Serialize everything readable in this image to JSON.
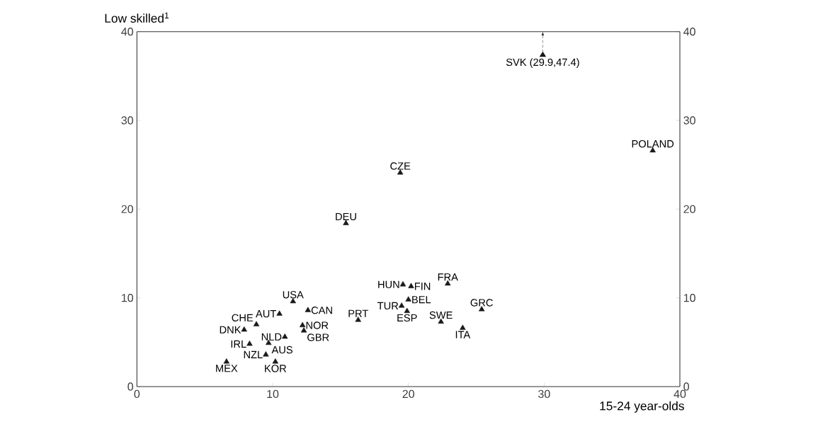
{
  "chart_data": {
    "type": "scatter",
    "ylabel": "Low skilled$^{1}$",
    "xlabel": "15-24 year-olds",
    "xlim": [
      0,
      40
    ],
    "ylim": [
      0,
      40
    ],
    "xticks": [
      0,
      10,
      20,
      30,
      40
    ],
    "yticks": [
      0,
      10,
      20,
      30,
      40
    ],
    "y2lim": [
      0,
      40
    ],
    "y2ticks": [
      0,
      10,
      20,
      30,
      40
    ],
    "marker": "triangle",
    "grid": false,
    "series": [
      {
        "color": "#1a1a1a",
        "x": [
          19.4,
          38.0,
          15.4,
          11.5,
          10.5,
          12.6,
          8.8,
          12.2,
          12.3,
          7.9,
          10.9,
          8.3,
          9.7,
          9.5,
          6.6,
          10.2,
          16.3,
          19.6,
          20.2,
          20.0,
          19.5,
          19.9,
          22.9,
          25.4,
          22.4,
          24.0
        ],
        "values": [
          24.1,
          26.6,
          18.4,
          9.6,
          8.2,
          8.6,
          7.0,
          6.9,
          6.3,
          6.4,
          5.6,
          4.8,
          4.9,
          3.6,
          2.8,
          2.8,
          7.5,
          11.5,
          11.3,
          9.8,
          9.1,
          8.5,
          11.6,
          8.7,
          7.3,
          6.6
        ]
      }
    ],
    "annotations": [
      "SVK (29.9,47.4)",
      {
        "text": "CZE",
        "x": 19.4,
        "y": 24.1
      },
      {
        "text": "POLAND",
        "x": 38.0,
        "y": 26.6
      },
      {
        "text": "DEU",
        "x": 15.4,
        "y": 18.4
      },
      {
        "text": "USA",
        "x": 11.5,
        "y": 9.6
      },
      {
        "text": "AUT",
        "x": 10.5,
        "y": 8.2
      },
      {
        "text": "CAN",
        "x": 12.6,
        "y": 8.6
      },
      {
        "text": "CHE",
        "x": 8.8,
        "y": 7.0
      },
      {
        "text": "NOR",
        "x": 12.2,
        "y": 6.9
      },
      {
        "text": "GBR",
        "x": 12.3,
        "y": 6.3
      },
      {
        "text": "DNK",
        "x": 7.9,
        "y": 6.4
      },
      {
        "text": "NLD",
        "x": 10.9,
        "y": 5.6
      },
      {
        "text": "IRL",
        "x": 8.3,
        "y": 4.8
      },
      {
        "text": "AUS",
        "x": 9.7,
        "y": 4.9
      },
      {
        "text": "NZL",
        "x": 9.5,
        "y": 3.6
      },
      {
        "text": "MEX",
        "x": 6.6,
        "y": 2.8
      },
      {
        "text": "KOR",
        "x": 10.2,
        "y": 2.8
      },
      {
        "text": "PRT",
        "x": 16.3,
        "y": 7.5
      },
      {
        "text": "HUN",
        "x": 19.6,
        "y": 11.5
      },
      {
        "text": "FIN",
        "x": 20.2,
        "y": 11.3
      },
      {
        "text": "BEL",
        "x": 20.0,
        "y": 9.8
      },
      {
        "text": "TUR",
        "x": 19.5,
        "y": 9.1
      },
      {
        "text": "ESP",
        "x": 19.9,
        "y": 8.5
      },
      {
        "text": "FRA",
        "x": 22.9,
        "y": 11.6
      },
      {
        "text": "GRC",
        "x": 25.4,
        "y": 8.7
      },
      {
        "text": "SWE",
        "x": 22.4,
        "y": 7.3
      },
      {
        "text": "ITA",
        "x": 24.0,
        "y": 6.6
      }
    ]
  }
}
